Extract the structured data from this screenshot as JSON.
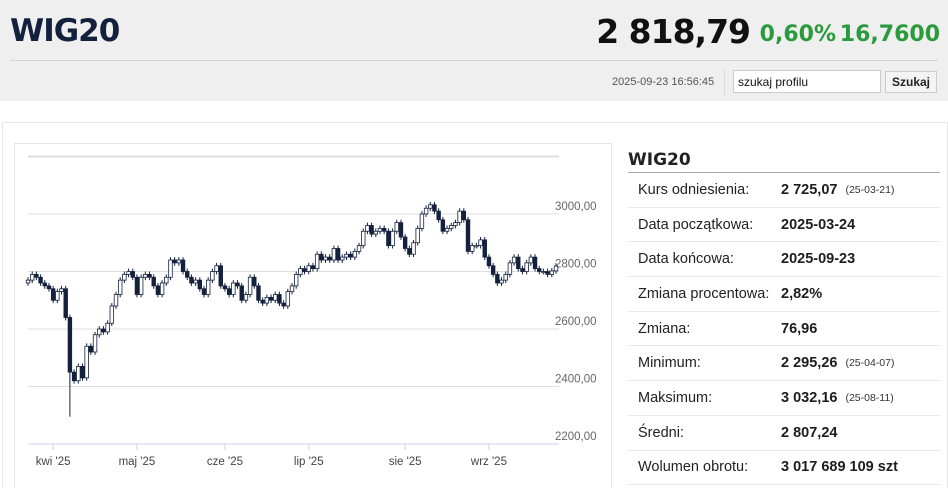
{
  "header": {
    "title": "WIG20",
    "price": "2 818,79",
    "change_pct": "0,60%",
    "change": "16,7600",
    "timestamp": "2025-09-23 16:56:45",
    "search_placeholder": "szukaj profilu",
    "search_value": "szukaj profilu",
    "search_button": "Szukaj"
  },
  "colors": {
    "positive": "#2a9a3c",
    "title": "#14213d",
    "candle_down": "#14213d",
    "candle_up": "#ffffff"
  },
  "chart_data": {
    "type": "candlestick",
    "title": "",
    "ylim": [
      2200,
      3200
    ],
    "grid": true,
    "y_ticks": [
      "3000,00",
      "2800,00",
      "2600,00",
      "2400,00",
      "2200,00"
    ],
    "y_tick_values": [
      3000,
      2800,
      2600,
      2400,
      2200
    ],
    "x_ticks": [
      {
        "label": "kwi '25",
        "index": 6
      },
      {
        "label": "maj '25",
        "index": 26
      },
      {
        "label": "cze '25",
        "index": 47
      },
      {
        "label": "lip '25",
        "index": 67
      },
      {
        "label": "sie '25",
        "index": 90
      },
      {
        "label": "wrz '25",
        "index": 110
      }
    ],
    "first_open": 2760,
    "close": [
      2770,
      2790,
      2780,
      2760,
      2750,
      2740,
      2700,
      2730,
      2740,
      2640,
      2450,
      2420,
      2470,
      2430,
      2540,
      2520,
      2580,
      2600,
      2590,
      2620,
      2680,
      2720,
      2770,
      2790,
      2800,
      2780,
      2720,
      2780,
      2790,
      2780,
      2750,
      2720,
      2760,
      2780,
      2840,
      2830,
      2840,
      2800,
      2780,
      2760,
      2770,
      2740,
      2720,
      2770,
      2800,
      2820,
      2750,
      2740,
      2720,
      2760,
      2750,
      2700,
      2720,
      2780,
      2750,
      2700,
      2690,
      2710,
      2700,
      2720,
      2690,
      2680,
      2730,
      2750,
      2790,
      2810,
      2800,
      2820,
      2810,
      2860,
      2840,
      2850,
      2840,
      2880,
      2840,
      2850,
      2860,
      2850,
      2870,
      2890,
      2940,
      2960,
      2930,
      2940,
      2950,
      2940,
      2890,
      2940,
      2970,
      2920,
      2880,
      2860,
      2900,
      2950,
      3000,
      3020,
      3032,
      3010,
      2980,
      2940,
      2950,
      2960,
      2970,
      3010,
      2980,
      2870,
      2890,
      2890,
      2910,
      2850,
      2820,
      2790,
      2760,
      2770,
      2790,
      2830,
      2850,
      2810,
      2800,
      2830,
      2850,
      2810,
      2800,
      2800,
      2790,
      2802,
      2819
    ],
    "low_extremes": {
      "10": 2295
    }
  },
  "stats": {
    "title": "WIG20",
    "rows": [
      {
        "label": "Kurs odniesienia:",
        "value": "2 725,07",
        "date": "(25-03-21)"
      },
      {
        "label": "Data początkowa:",
        "value": "2025-03-24",
        "date": ""
      },
      {
        "label": "Data końcowa:",
        "value": "2025-09-23",
        "date": ""
      },
      {
        "label": "Zmiana procentowa:",
        "value": "2,82%",
        "date": ""
      },
      {
        "label": "Zmiana:",
        "value": "76,96",
        "date": ""
      },
      {
        "label": "Minimum:",
        "value": "2 295,26",
        "date": "(25-04-07)"
      },
      {
        "label": "Maksimum:",
        "value": "3 032,16",
        "date": "(25-08-11)"
      },
      {
        "label": "Średni:",
        "value": "2 807,24",
        "date": ""
      },
      {
        "label": "Wolumen obrotu:",
        "value": "3 017 689 109 szt",
        "date": ""
      }
    ]
  }
}
